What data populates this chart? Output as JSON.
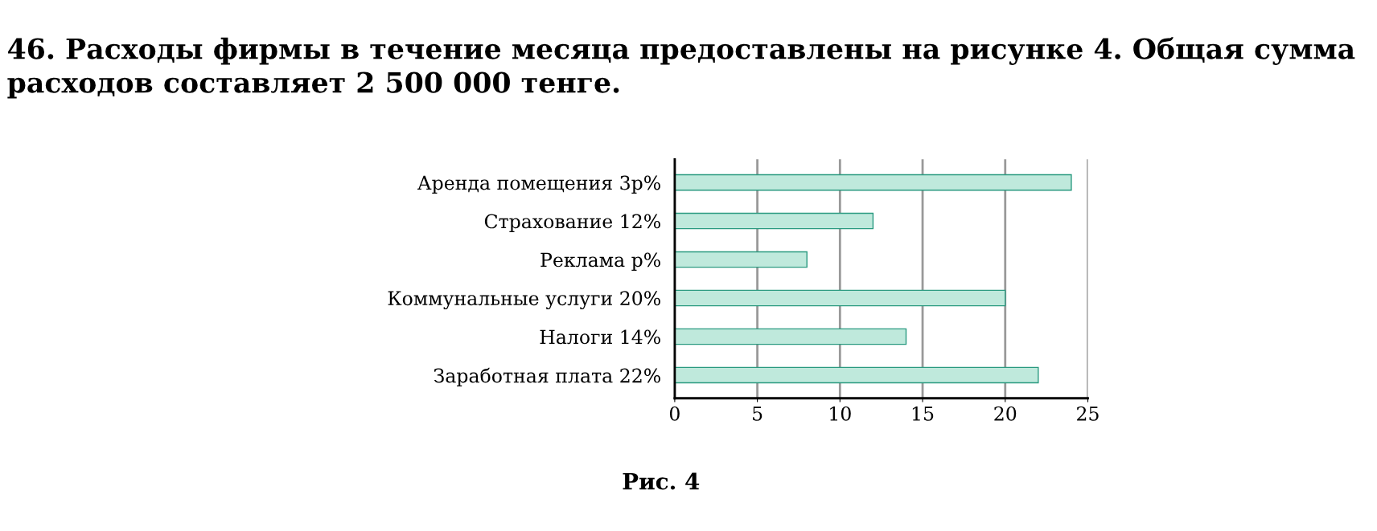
{
  "chart_data": {
    "type": "bar",
    "orientation": "horizontal",
    "title": "46. Расходы фирмы в течение месяца предоставлены на рисунке 4. Общая сумма расходов составляет 2 500 000 тенге.",
    "categories": [
      "Аренда помещения 3p%",
      "Страхование 12%",
      "Реклама p%",
      "Коммунальные услуги 20%",
      "Налоги 14%",
      "Заработная плата 22%"
    ],
    "values": [
      24,
      12,
      8,
      20,
      14,
      22
    ],
    "color": "#bfe9dc",
    "xlim": [
      0,
      25
    ],
    "xticks": [
      0,
      5,
      10,
      15,
      20,
      25
    ],
    "grid": "x",
    "annotations": [
      "Рис. 4"
    ]
  }
}
